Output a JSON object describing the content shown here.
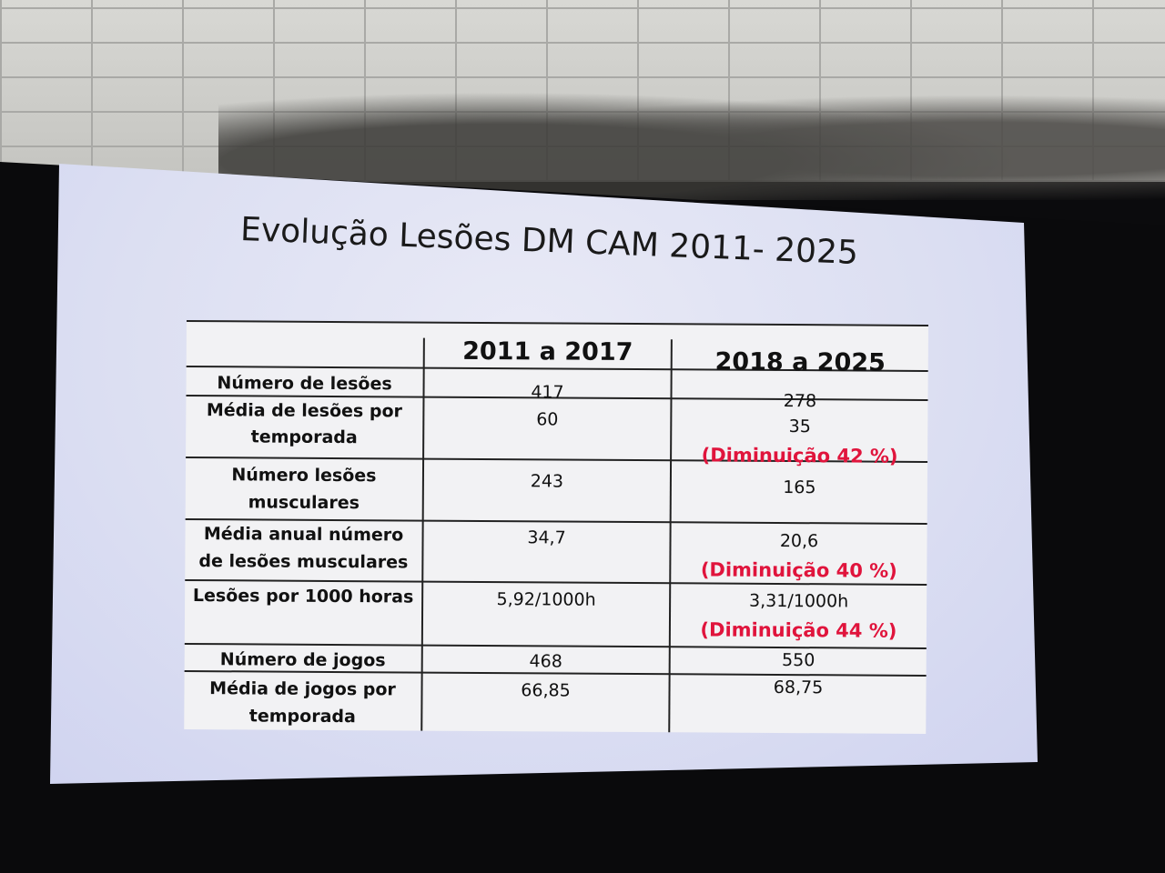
{
  "slide": {
    "title": "Evolução Lesões DM CAM 2011- 2025",
    "accent_color": "#e0143c",
    "columns": [
      "",
      "2011 a 2017",
      "2018 a 2025"
    ],
    "rows": [
      {
        "label": "Número de lesões",
        "p1": "417",
        "p2": "278",
        "note": ""
      },
      {
        "label": "Média de lesões por temporada",
        "p1": "60",
        "p2": "35",
        "note": "(Diminuição 42 %)"
      },
      {
        "label": "Número lesões musculares",
        "p1": "243",
        "p2": "165",
        "note": ""
      },
      {
        "label": "Média anual número de lesões musculares",
        "p1": "34,7",
        "p2": "20,6",
        "note": "(Diminuição 40 %)"
      },
      {
        "label": "Lesões por 1000 horas",
        "p1": "5,92/1000h",
        "p2": "3,31/1000h",
        "note": "(Diminuição 44 %)"
      },
      {
        "label": "Número de jogos",
        "p1": "468",
        "p2": "550",
        "note": ""
      },
      {
        "label": "Média de jogos por temporada",
        "p1": "66,85",
        "p2": "68,75",
        "note": ""
      }
    ]
  }
}
